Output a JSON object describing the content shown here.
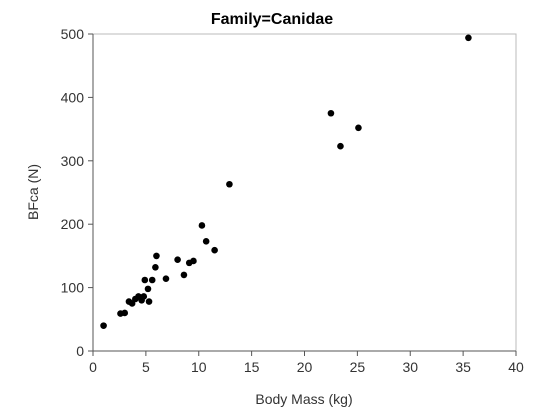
{
  "chart_data": {
    "type": "scatter",
    "title": "Family=Canidae",
    "xlabel": "Body Mass (kg)",
    "ylabel": "BFca (N)",
    "xlim": [
      0,
      40
    ],
    "ylim": [
      0,
      500
    ],
    "x_ticks": [
      0,
      5,
      10,
      15,
      20,
      25,
      30,
      35,
      40
    ],
    "y_ticks": [
      0,
      100,
      200,
      300,
      400,
      500
    ],
    "grid": false,
    "point_color": "#000000",
    "points": [
      {
        "x": 1.0,
        "y": 40
      },
      {
        "x": 2.6,
        "y": 59
      },
      {
        "x": 3.0,
        "y": 60
      },
      {
        "x": 3.4,
        "y": 78
      },
      {
        "x": 3.7,
        "y": 75
      },
      {
        "x": 4.0,
        "y": 82
      },
      {
        "x": 4.3,
        "y": 86
      },
      {
        "x": 4.6,
        "y": 80
      },
      {
        "x": 4.8,
        "y": 86
      },
      {
        "x": 4.9,
        "y": 112
      },
      {
        "x": 5.2,
        "y": 98
      },
      {
        "x": 5.3,
        "y": 78
      },
      {
        "x": 5.6,
        "y": 112
      },
      {
        "x": 5.9,
        "y": 132
      },
      {
        "x": 6.0,
        "y": 150
      },
      {
        "x": 6.9,
        "y": 114
      },
      {
        "x": 8.0,
        "y": 144
      },
      {
        "x": 8.6,
        "y": 120
      },
      {
        "x": 9.1,
        "y": 139
      },
      {
        "x": 9.5,
        "y": 142
      },
      {
        "x": 10.3,
        "y": 198
      },
      {
        "x": 10.7,
        "y": 173
      },
      {
        "x": 11.5,
        "y": 159
      },
      {
        "x": 12.9,
        "y": 263
      },
      {
        "x": 22.5,
        "y": 375
      },
      {
        "x": 23.4,
        "y": 323
      },
      {
        "x": 25.1,
        "y": 352
      },
      {
        "x": 35.5,
        "y": 494
      }
    ]
  }
}
